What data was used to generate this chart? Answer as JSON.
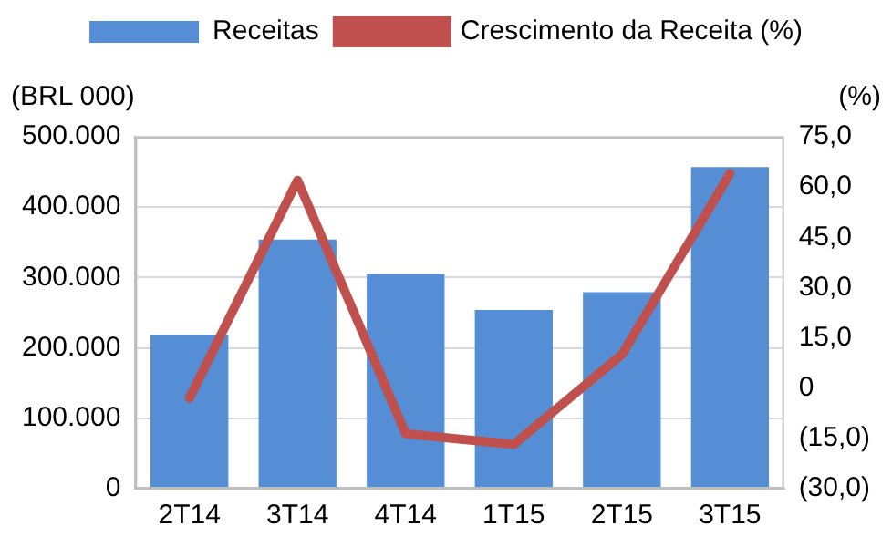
{
  "chart_data": {
    "type": "bar",
    "ylabel": "(BRL 000)",
    "y2label": "(%)",
    "categories": [
      "2T14",
      "3T14",
      "4T14",
      "1T15",
      "2T15",
      "3T15"
    ],
    "series": [
      {
        "name": "Receitas",
        "color": "#558ed5",
        "values": [
          218000,
          354000,
          305000,
          254000,
          279000,
          457000
        ]
      },
      {
        "name": "Crescimento da Receita (%)",
        "type": "line",
        "axis": "y2",
        "color": "#c0504d",
        "marker": "none",
        "values": [
          -3,
          62,
          -13.6,
          -16.8,
          10,
          64
        ]
      }
    ],
    "ylim": [
      0,
      500000
    ],
    "yticks": [
      {
        "value": 0,
        "label": "0"
      },
      {
        "value": 100000,
        "label": "100.000"
      },
      {
        "value": 200000,
        "label": "200.000"
      },
      {
        "value": 300000,
        "label": "300.000"
      },
      {
        "value": 400000,
        "label": "400.000"
      },
      {
        "value": 500000,
        "label": "500.000"
      }
    ],
    "y2lim": [
      -30,
      75
    ],
    "y2ticks": [
      {
        "value": -30,
        "label": "(30,0)"
      },
      {
        "value": -15,
        "label": "(15,0)"
      },
      0,
      {
        "value": 15,
        "label": "15,0"
      },
      {
        "value": 30,
        "label": "30,0"
      },
      {
        "value": 45,
        "label": "45,0"
      },
      {
        "value": 60,
        "label": "60,0"
      },
      {
        "value": 75,
        "label": "75,0"
      }
    ],
    "grid": "y",
    "legend": "top"
  }
}
